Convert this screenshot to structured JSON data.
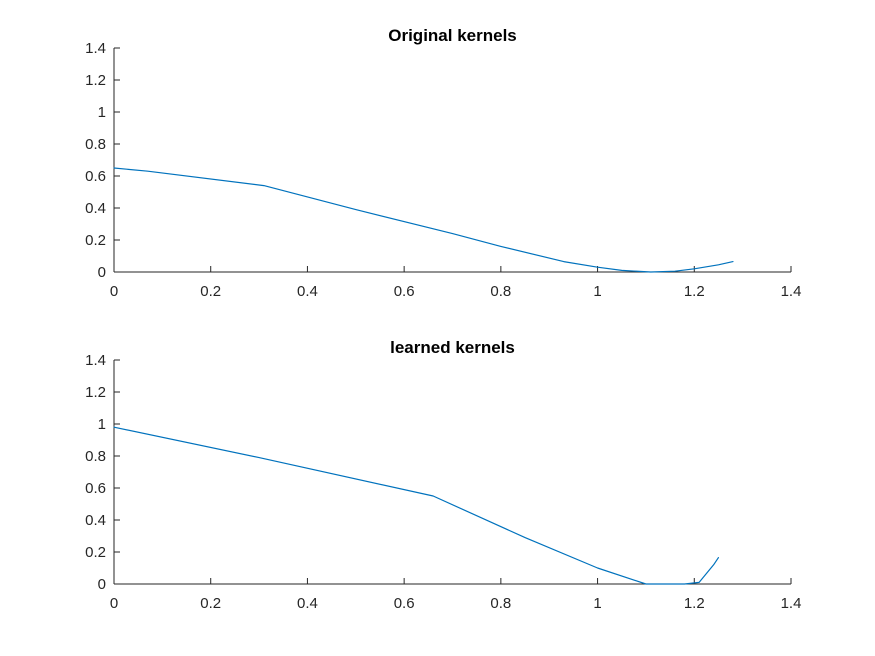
{
  "chart_data": [
    {
      "type": "line",
      "title": "Original kernels",
      "xlabel": "",
      "ylabel": "",
      "xlim": [
        0,
        1.4
      ],
      "ylim": [
        0,
        1.4
      ],
      "xticks": [
        0,
        0.2,
        0.4,
        0.6,
        0.8,
        1,
        1.2,
        1.4
      ],
      "yticks": [
        0,
        0.2,
        0.4,
        0.6,
        0.8,
        1,
        1.2,
        1.4
      ],
      "xtick_labels": [
        "0",
        "0.2",
        "0.4",
        "0.6",
        "0.8",
        "1",
        "1.2",
        "1.4"
      ],
      "ytick_labels": [
        "0",
        "0.2",
        "0.4",
        "0.6",
        "0.8",
        "1",
        "1.2",
        "1.4"
      ],
      "grid": false,
      "series": [
        {
          "color": "#0072BD",
          "x": [
            0,
            0.07,
            0.31,
            0.5,
            0.7,
            0.8,
            0.93,
            1.0,
            1.05,
            1.11,
            1.16,
            1.2,
            1.25,
            1.28
          ],
          "y": [
            0.65,
            0.63,
            0.54,
            0.39,
            0.24,
            0.16,
            0.065,
            0.03,
            0.01,
            0.0,
            0.005,
            0.02,
            0.045,
            0.065
          ]
        }
      ]
    },
    {
      "type": "line",
      "title": "learned kernels",
      "xlabel": "",
      "ylabel": "",
      "xlim": [
        0,
        1.4
      ],
      "ylim": [
        0,
        1.4
      ],
      "xticks": [
        0,
        0.2,
        0.4,
        0.6,
        0.8,
        1,
        1.2,
        1.4
      ],
      "yticks": [
        0,
        0.2,
        0.4,
        0.6,
        0.8,
        1,
        1.2,
        1.4
      ],
      "xtick_labels": [
        "0",
        "0.2",
        "0.4",
        "0.6",
        "0.8",
        "1",
        "1.2",
        "1.4"
      ],
      "ytick_labels": [
        "0",
        "0.2",
        "0.4",
        "0.6",
        "0.8",
        "1",
        "1.2",
        "1.4"
      ],
      "grid": false,
      "series": [
        {
          "color": "#0072BD",
          "x": [
            0,
            0.3,
            0.66,
            0.85,
            1.0,
            1.1,
            1.15,
            1.18,
            1.21,
            1.24,
            1.25
          ],
          "y": [
            0.98,
            0.79,
            0.55,
            0.29,
            0.1,
            0.0,
            0.0,
            0.0,
            0.01,
            0.12,
            0.165
          ]
        }
      ]
    }
  ]
}
